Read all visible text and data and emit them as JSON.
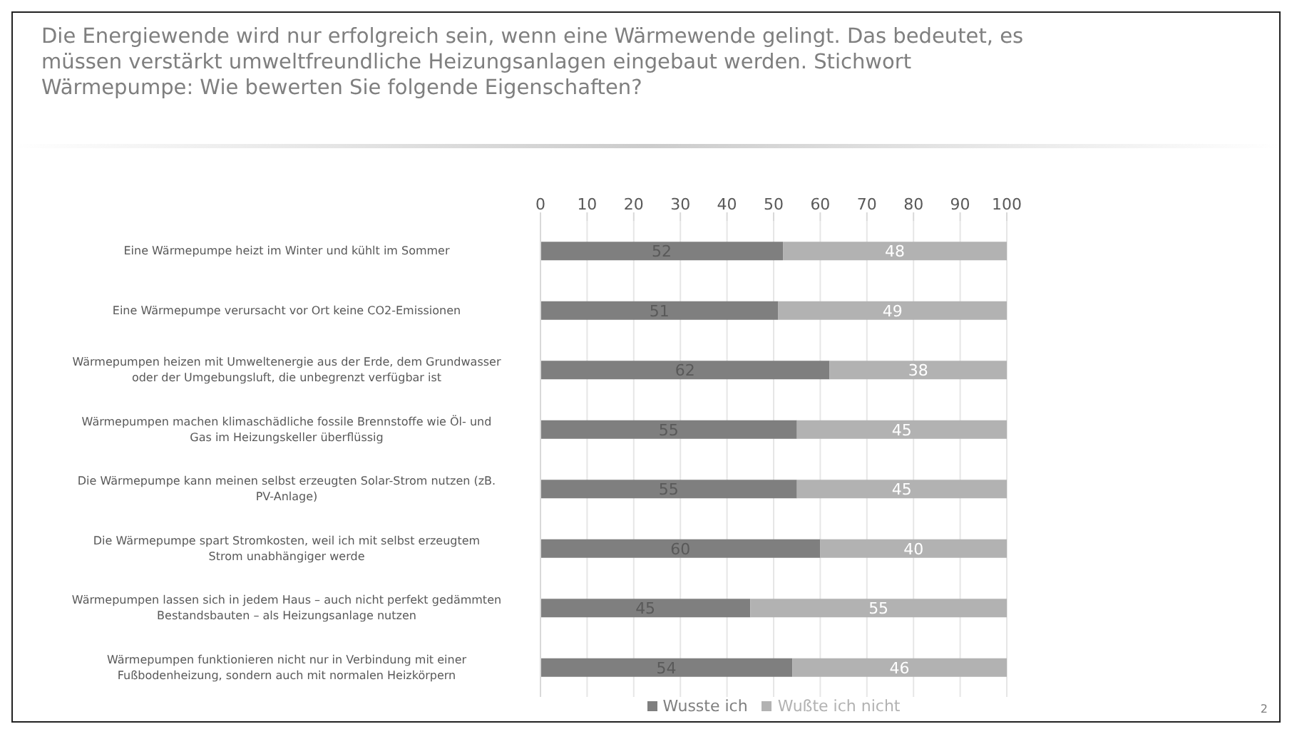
{
  "chart_data": {
    "type": "bar",
    "orientation": "horizontal",
    "stacked": true,
    "title": "Die Energiewende wird nur erfolgreich sein, wenn eine Wärmewende gelingt. Das bedeutet, es müssen verstärkt umweltfreundliche Heizungsanlagen eingebaut werden. Stichwort Wärmepumpe:  Wie bewerten Sie folgende Eigenschaften?",
    "categories": [
      "Eine Wärmepumpe heizt im Winter und kühlt im Sommer",
      "Eine Wärmepumpe verursacht vor Ort keine CO2-Emissionen",
      "Wärmepumpen heizen mit Umweltenergie aus der Erde, dem Grundwasser oder der Umgebungsluft, die unbegrenzt verfügbar ist",
      "Wärmepumpen machen klimaschädliche fossile Brennstoffe wie Öl- und Gas im Heizungskeller überflüssig",
      "Die Wärmepumpe kann meinen selbst erzeugten Solar-Strom nutzen (zB. PV-Anlage)",
      "Die Wärmepumpe spart Stromkosten, weil ich mit selbst erzeugtem Strom unabhängiger werde",
      "Wärmepumpen lassen sich in jedem Haus – auch nicht perfekt gedämmten Bestandsbauten – als Heizungsanlage nutzen",
      "Wärmepumpen funktionieren nicht nur in Verbindung mit einer Fußbodenheizung, sondern auch mit normalen Heizkörpern"
    ],
    "series": [
      {
        "name": "Wusste ich",
        "color": "#7f7f7f",
        "values": [
          52,
          51,
          62,
          55,
          55,
          60,
          45,
          54
        ]
      },
      {
        "name": "Wußte ich nicht",
        "color": "#b2b2b2",
        "values": [
          48,
          49,
          38,
          45,
          45,
          40,
          55,
          46
        ]
      }
    ],
    "xlim": [
      0,
      100
    ],
    "xticks": [
      0,
      10,
      20,
      30,
      40,
      50,
      60,
      70,
      80,
      90,
      100
    ],
    "grid": "x",
    "legend": "bottom",
    "data_labels": true,
    "annotations": [
      "2"
    ]
  }
}
